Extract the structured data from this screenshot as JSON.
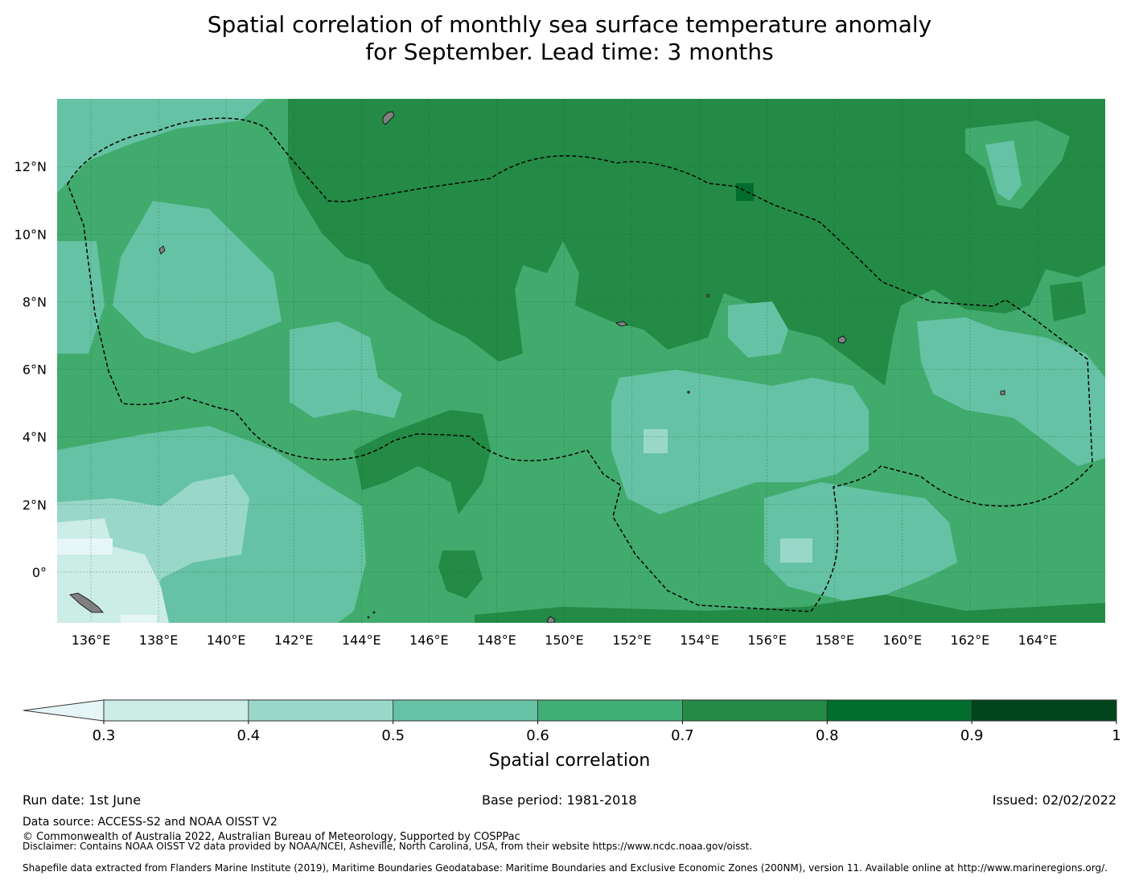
{
  "title": {
    "line1": "Spatial correlation of monthly sea surface temperature anomaly",
    "line2": "for September. Lead time: 3 months"
  },
  "map": {
    "lon_range": [
      135,
      166
    ],
    "lat_range": [
      -1.5,
      14
    ],
    "background_color": "#41ab6e",
    "land_color": "#808080",
    "x_ticks": [
      "136°E",
      "138°E",
      "140°E",
      "142°E",
      "144°E",
      "146°E",
      "148°E",
      "150°E",
      "152°E",
      "154°E",
      "156°E",
      "158°E",
      "160°E",
      "162°E",
      "164°E"
    ],
    "y_ticks": [
      "12°N",
      "10°N",
      "8°N",
      "6°N",
      "4°N",
      "2°N",
      "0°"
    ],
    "grid": true,
    "boundary_style": "dashed"
  },
  "chart_data": {
    "type": "heatmap",
    "levels": [
      0.3,
      0.4,
      0.5,
      0.6,
      0.7,
      0.8,
      0.9,
      1
    ],
    "colors": [
      "#e6f5f5",
      "#ccece6",
      "#99d8c9",
      "#66c2a4",
      "#41ae76",
      "#238b45",
      "#006d2c",
      "#00441b"
    ],
    "extend": "min",
    "regions": [
      {
        "name": "north-central-high",
        "lon": [
          141.8,
          166
        ],
        "lat": [
          9,
          14
        ],
        "value": 0.75
      },
      {
        "name": "far-east-band",
        "lon": [
          160,
          166
        ],
        "lat": [
          7,
          14
        ],
        "value": 0.75
      },
      {
        "name": "central-patch",
        "lon": [
          150,
          155
        ],
        "lat": [
          6.5,
          10
        ],
        "value": 0.75
      },
      {
        "name": "west-central",
        "lon": [
          135,
          141.8
        ],
        "lat": [
          5,
          14
        ],
        "value": 0.65
      },
      {
        "name": "southwest-low",
        "lon": [
          135,
          140
        ],
        "lat": [
          -1.5,
          2
        ],
        "value": 0.35
      },
      {
        "name": "south-central-mid",
        "lon": [
          153,
          159
        ],
        "lat": [
          0,
          5
        ],
        "value": 0.55
      },
      {
        "name": "east-mid",
        "lon": [
          160,
          166
        ],
        "lat": [
          3.5,
          7
        ],
        "value": 0.55
      }
    ],
    "max_cell": {
      "lon": 156.5,
      "lat": 11,
      "value": 0.85
    }
  },
  "colorbar": {
    "tick_labels": [
      "0.3",
      "0.4",
      "0.5",
      "0.6",
      "0.7",
      "0.8",
      "0.9",
      "1"
    ],
    "label": "Spatial correlation"
  },
  "footer": {
    "run_date": "Run date: 1st June",
    "base_period": "Base period: 1981-2018",
    "issued": "Issued: 02/02/2022",
    "data_source": "Data source: ACCESS-S2 and NOAA OISST V2",
    "copyright": "© Commonwealth of Australia 2022, Australian Bureau of Meteorology, Supported by COSPPac",
    "disclaimer": "Disclaimer: Contains NOAA OISST V2 data provided by NOAA/NCEI, Asheville, North Carolina, USA, from their website https://www.ncdc.noaa.gov/oisst.",
    "shapefile": "Shapefile data extracted from Flanders Marine Institute (2019), Maritime Boundaries Geodatabase: Maritime Boundaries and Exclusive Economic Zones (200NM), version 11. Available online at http://www.marineregions.org/."
  }
}
